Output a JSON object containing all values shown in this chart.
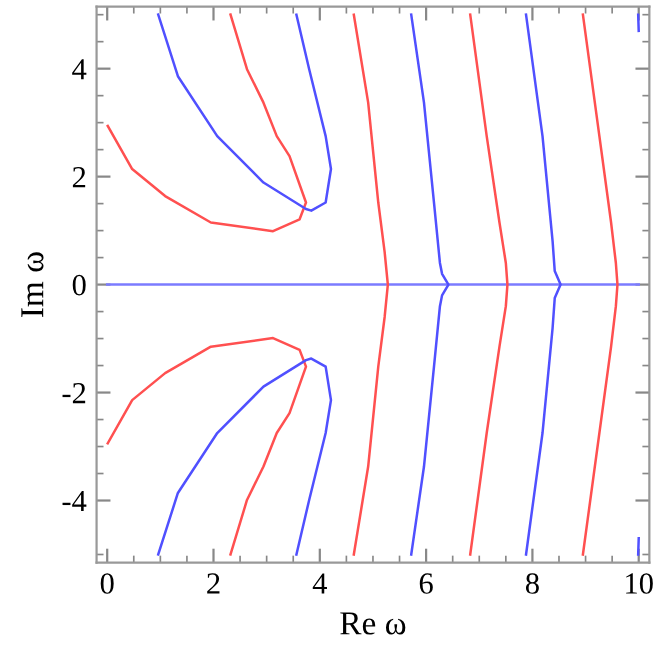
{
  "chart_data": {
    "type": "line",
    "xlabel": "Re ω",
    "ylabel": "Im ω",
    "xlim": [
      -0.2,
      10.2
    ],
    "ylim": [
      -5.15,
      5.15
    ],
    "xticks": [
      0,
      {
        "value": 0.5,
        "label": null
      },
      {
        "value": 1,
        "label": null
      },
      {
        "value": 1.5,
        "label": null
      },
      2,
      {
        "value": 2.5,
        "label": null
      },
      {
        "value": 3,
        "label": null
      },
      {
        "value": 3.5,
        "label": null
      },
      4,
      {
        "value": 4.5,
        "label": null
      },
      {
        "value": 5,
        "label": null
      },
      {
        "value": 5.5,
        "label": null
      },
      6,
      {
        "value": 6.5,
        "label": null
      },
      {
        "value": 7,
        "label": null
      },
      {
        "value": 7.5,
        "label": null
      },
      8,
      {
        "value": 8.5,
        "label": null
      },
      {
        "value": 9,
        "label": null
      },
      {
        "value": 9.5,
        "label": null
      },
      10
    ],
    "yticks": [
      {
        "value": -5,
        "label": null
      },
      -4,
      {
        "value": -3.5,
        "label": null
      },
      {
        "value": -3,
        "label": null
      },
      {
        "value": -2.5,
        "label": null
      },
      -2,
      {
        "value": -1.5,
        "label": null
      },
      {
        "value": -1,
        "label": null
      },
      {
        "value": -0.5,
        "label": null
      },
      0,
      {
        "value": 0.5,
        "label": null
      },
      {
        "value": 1,
        "label": null
      },
      {
        "value": 1.5,
        "label": null
      },
      2,
      {
        "value": 2.5,
        "label": null
      },
      {
        "value": 3,
        "label": null
      },
      {
        "value": 3.5,
        "label": null
      },
      4,
      {
        "value": 4.5,
        "label": null
      },
      {
        "value": 5,
        "label": null
      }
    ],
    "grid": false,
    "marker": "none",
    "line_style": "solid",
    "series": [
      {
        "color": "#7b7bff",
        "x": [
          0,
          10
        ],
        "values": [
          0,
          0
        ]
      },
      {
        "color": "#ff5050",
        "x": [
          0.01,
          0.47,
          1.09,
          1.95,
          3.12,
          3.62,
          3.74,
          3.43,
          3.19,
          2.94,
          2.63,
          2.32
        ],
        "values": [
          2.94,
          2.14,
          1.64,
          1.15,
          0.99,
          1.21,
          1.52,
          2.38,
          2.75,
          3.37,
          3.99,
          5.0
        ]
      },
      {
        "color": "#5050ff",
        "x": [
          0.96,
          1.33,
          2.07,
          2.94,
          3.74,
          3.84,
          4.11,
          4.21,
          4.11,
          3.8,
          3.56
        ],
        "values": [
          5.0,
          3.86,
          2.75,
          1.89,
          1.4,
          1.37,
          1.52,
          2.14,
          2.75,
          3.99,
          5.0
        ]
      },
      {
        "color": "#ff5050",
        "x": [
          0.01,
          0.47,
          1.09,
          1.95,
          3.12,
          3.62,
          3.74,
          3.43,
          3.19,
          2.94,
          2.63,
          2.32
        ],
        "values": [
          -2.94,
          -2.14,
          -1.64,
          -1.15,
          -0.99,
          -1.21,
          -1.52,
          -2.38,
          -2.75,
          -3.37,
          -3.99,
          -5.0
        ]
      },
      {
        "color": "#5050ff",
        "x": [
          0.96,
          1.33,
          2.07,
          2.94,
          3.74,
          3.84,
          4.11,
          4.21,
          4.11,
          3.8,
          3.56
        ],
        "values": [
          -5.0,
          -3.86,
          -2.75,
          -1.89,
          -1.4,
          -1.37,
          -1.52,
          -2.14,
          -2.75,
          -3.99,
          -5.0
        ]
      },
      {
        "color": "#ff5050",
        "x": [
          4.64,
          4.91,
          5.1,
          5.22,
          5.28,
          5.22,
          5.1,
          4.91,
          4.64
        ],
        "values": [
          5.0,
          3.37,
          1.52,
          0.6,
          0,
          -0.6,
          -1.52,
          -3.37,
          -5.0
        ]
      },
      {
        "color": "#5050ff",
        "x": [
          5.72,
          5.96,
          6.15,
          6.26,
          6.3,
          6.42,
          6.3,
          6.26,
          6.15,
          5.96,
          5.72
        ],
        "values": [
          5.0,
          3.37,
          1.5,
          0.4,
          0.2,
          0,
          -0.2,
          -0.4,
          -1.5,
          -3.37,
          -5.0
        ]
      },
      {
        "color": "#ff5050",
        "x": [
          6.83,
          7.14,
          7.38,
          7.5,
          7.53,
          7.5,
          7.38,
          7.14,
          6.83
        ],
        "values": [
          5.0,
          2.75,
          1.15,
          0.4,
          0,
          -0.4,
          -1.15,
          -2.75,
          -5.0
        ]
      },
      {
        "color": "#5050ff",
        "x": [
          7.88,
          8.19,
          8.38,
          8.42,
          8.53,
          8.42,
          8.38,
          8.19,
          7.88
        ],
        "values": [
          5.0,
          2.75,
          0.8,
          0.25,
          0,
          -0.25,
          -0.8,
          -2.75,
          -5.0
        ]
      },
      {
        "color": "#ff5050",
        "x": [
          8.95,
          9.26,
          9.48,
          9.57,
          9.6,
          9.57,
          9.48,
          9.26,
          8.95
        ],
        "values": [
          5.0,
          2.75,
          1.15,
          0.4,
          0,
          -0.4,
          -1.15,
          -2.75,
          -5.0
        ]
      },
      {
        "color": "#5050ff",
        "x": [
          9.99,
          10.0
        ],
        "values": [
          5.0,
          4.7
        ]
      },
      {
        "color": "#5050ff",
        "x": [
          10.0,
          9.99
        ],
        "values": [
          -4.7,
          -5.0
        ]
      }
    ]
  }
}
